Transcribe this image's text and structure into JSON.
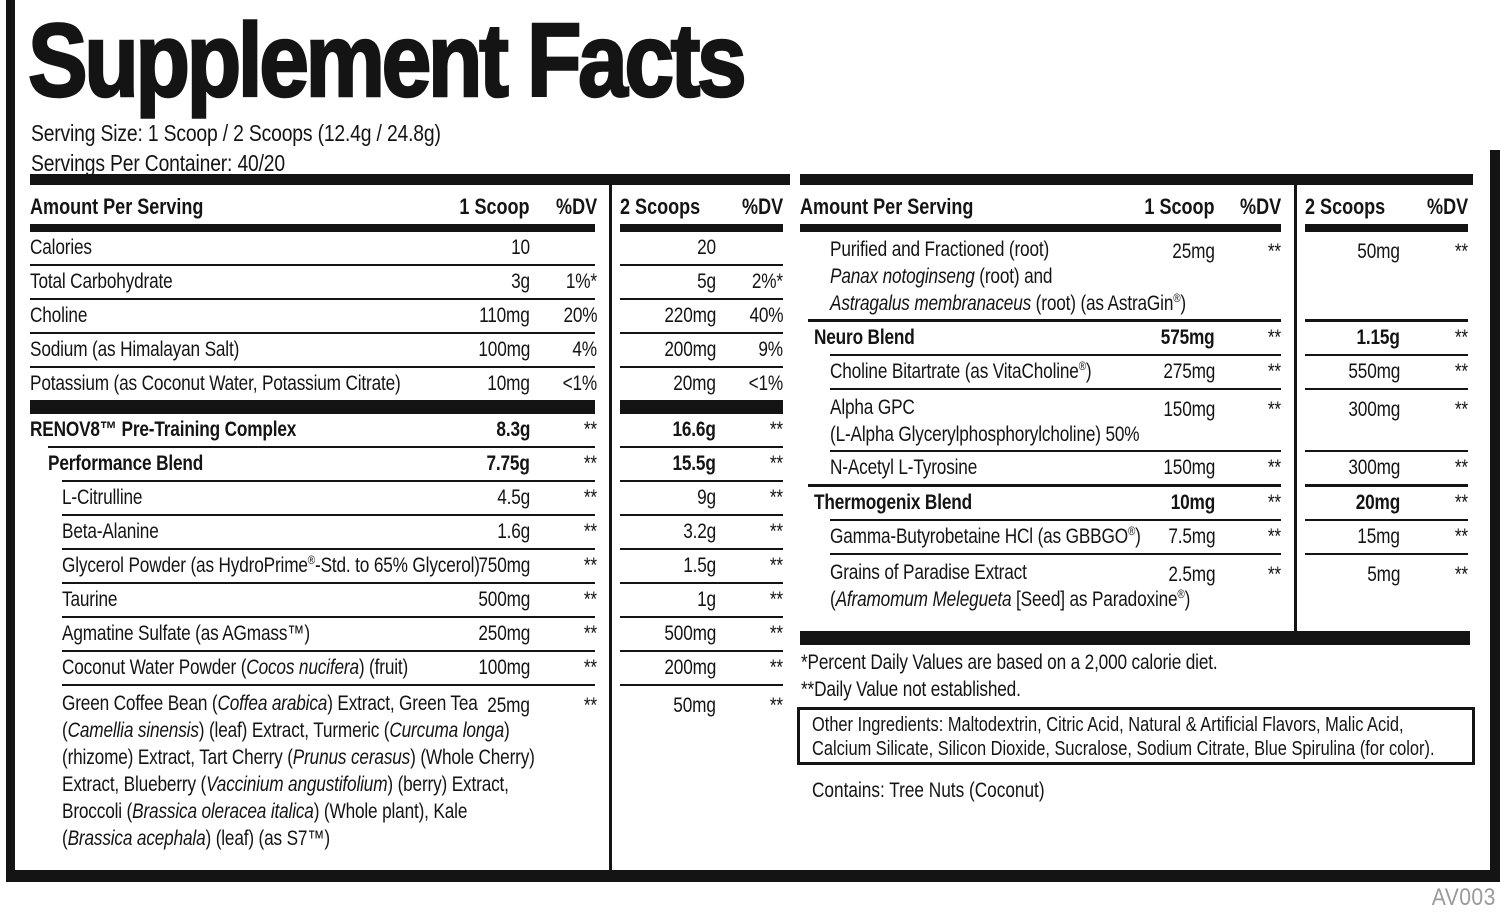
{
  "title": "Supplement Facts",
  "serving_size_line": "Serving Size: 1 Scoop / 2 Scoops (12.4g / 24.8g)",
  "servings_per_container_line": "Servings Per Container: 40/20",
  "colors": {
    "ink": "#141414",
    "muted": "#9a9a9a",
    "background": "#ffffff"
  },
  "header": {
    "amount": "Amount Per Serving",
    "scoop1": "1 Scoop",
    "dv": "%DV",
    "scoop2": "2 Scoops"
  },
  "left_table": {
    "items": [
      {
        "type": "row",
        "indent": 0,
        "bold": false,
        "lines": [
          [
            [
              "t",
              "Calories"
            ]
          ]
        ],
        "v1": "10",
        "d1": "",
        "v2": "20",
        "d2": "",
        "sep": "thin",
        "sep_indent": 0
      },
      {
        "type": "row",
        "indent": 0,
        "bold": false,
        "lines": [
          [
            [
              "t",
              "Total Carbohydrate"
            ]
          ]
        ],
        "v1": "3g",
        "d1": "1%*",
        "v2": "5g",
        "d2": "2%*",
        "sep": "thin",
        "sep_indent": 0
      },
      {
        "type": "row",
        "indent": 0,
        "bold": false,
        "lines": [
          [
            [
              "t",
              "Choline"
            ]
          ]
        ],
        "v1": "110mg",
        "d1": "20%",
        "v2": "220mg",
        "d2": "40%",
        "sep": "thin",
        "sep_indent": 0
      },
      {
        "type": "row",
        "indent": 0,
        "bold": false,
        "lines": [
          [
            [
              "t",
              "Sodium (as Himalayan Salt)"
            ]
          ]
        ],
        "v1": "100mg",
        "d1": "4%",
        "v2": "200mg",
        "d2": "9%",
        "sep": "thin",
        "sep_indent": 0
      },
      {
        "type": "row",
        "indent": 0,
        "bold": false,
        "lines": [
          [
            [
              "t",
              "Potassium (as Coconut Water, Potassium Citrate)"
            ]
          ]
        ],
        "v1": "10mg",
        "d1": "<1%",
        "v2": "20mg",
        "d2": "<1%",
        "sep": "none"
      },
      {
        "type": "bar"
      },
      {
        "type": "row",
        "indent": 0,
        "bold": true,
        "lines": [
          [
            [
              "t",
              "RENOV8™ Pre-Training Complex"
            ]
          ]
        ],
        "v1": "8.3g",
        "d1": "**",
        "v2": "16.6g",
        "d2": "**",
        "sep": "thin",
        "sep_indent": 1
      },
      {
        "type": "row",
        "indent": 1,
        "bold": true,
        "lines": [
          [
            [
              "t",
              "Performance Blend"
            ]
          ]
        ],
        "v1": "7.75g",
        "d1": "**",
        "v2": "15.5g",
        "d2": "**",
        "sep": "thin",
        "sep_indent": 2
      },
      {
        "type": "row",
        "indent": 2,
        "bold": false,
        "lines": [
          [
            [
              "t",
              "L-Citrulline"
            ]
          ]
        ],
        "v1": "4.5g",
        "d1": "**",
        "v2": "9g",
        "d2": "**",
        "sep": "thin",
        "sep_indent": 2
      },
      {
        "type": "row",
        "indent": 2,
        "bold": false,
        "lines": [
          [
            [
              "t",
              "Beta-Alanine"
            ]
          ]
        ],
        "v1": "1.6g",
        "d1": "**",
        "v2": "3.2g",
        "d2": "**",
        "sep": "thin",
        "sep_indent": 2
      },
      {
        "type": "row",
        "indent": 2,
        "bold": false,
        "lines": [
          [
            [
              "t",
              "Glycerol Powder (as HydroPrime"
            ],
            [
              "s",
              "®"
            ],
            [
              "t",
              "-Std. to 65% Glycerol)"
            ]
          ]
        ],
        "v1": "750mg",
        "d1": "**",
        "v2": "1.5g",
        "d2": "**",
        "sep": "thin",
        "sep_indent": 2
      },
      {
        "type": "row",
        "indent": 2,
        "bold": false,
        "lines": [
          [
            [
              "t",
              "Taurine"
            ]
          ]
        ],
        "v1": "500mg",
        "d1": "**",
        "v2": "1g",
        "d2": "**",
        "sep": "thin",
        "sep_indent": 2
      },
      {
        "type": "row",
        "indent": 2,
        "bold": false,
        "lines": [
          [
            [
              "t",
              "Agmatine Sulfate (as AGmass™)"
            ]
          ]
        ],
        "v1": "250mg",
        "d1": "**",
        "v2": "500mg",
        "d2": "**",
        "sep": "thin",
        "sep_indent": 2
      },
      {
        "type": "row",
        "indent": 2,
        "bold": false,
        "lines": [
          [
            [
              "t",
              "Coconut Water Powder ("
            ],
            [
              "i",
              "Cocos nucifera"
            ],
            [
              "t",
              ") (fruit)"
            ]
          ]
        ],
        "v1": "100mg",
        "d1": "**",
        "v2": "200mg",
        "d2": "**",
        "sep": "thin",
        "sep_indent": 2
      },
      {
        "type": "row",
        "indent": 2,
        "bold": false,
        "lines": [
          [
            [
              "t",
              "Green Coffee Bean ("
            ],
            [
              "i",
              "Coffea arabica"
            ],
            [
              "t",
              ") Extract, Green Tea"
            ]
          ],
          [
            [
              "t",
              "("
            ],
            [
              "i",
              "Camellia sinensis"
            ],
            [
              "t",
              ") (leaf) Extract, Turmeric ("
            ],
            [
              "i",
              "Curcuma longa"
            ],
            [
              "t",
              ")"
            ]
          ],
          [
            [
              "t",
              "(rhizome) Extract, Tart Cherry ("
            ],
            [
              "i",
              "Prunus cerasus"
            ],
            [
              "t",
              ") (Whole Cherry)"
            ]
          ],
          [
            [
              "t",
              "Extract, Blueberry ("
            ],
            [
              "i",
              "Vaccinium angustifolium"
            ],
            [
              "t",
              ") (berry) Extract,"
            ]
          ],
          [
            [
              "t",
              "Broccoli ("
            ],
            [
              "i",
              "Brassica oleracea italica"
            ],
            [
              "t",
              ") (Whole plant), Kale"
            ]
          ],
          [
            [
              "t",
              "("
            ],
            [
              "i",
              "Brassica acephala"
            ],
            [
              "t",
              ") (leaf) (as S7™)"
            ]
          ]
        ],
        "v1": "25mg",
        "d1": "**",
        "v2": "50mg",
        "d2": "**",
        "sep": "none"
      }
    ]
  },
  "right_table": {
    "items": [
      {
        "type": "row",
        "indent": 2,
        "bold": false,
        "lines": [
          [
            [
              "t",
              "Purified and Fractioned (root)"
            ]
          ],
          [
            [
              "i",
              "Panax notoginseng"
            ],
            [
              "t",
              " (root) and"
            ]
          ],
          [
            [
              "i",
              "Astragalus membranaceus"
            ],
            [
              "t",
              " (root) (as AstraGin"
            ],
            [
              "s",
              "®"
            ],
            [
              "t",
              ")"
            ]
          ]
        ],
        "v1": "25mg",
        "d1": "**",
        "v2": "50mg",
        "d2": "**",
        "sep": "blend"
      },
      {
        "type": "row",
        "indent": 1,
        "bold": true,
        "lines": [
          [
            [
              "t",
              "Neuro Blend"
            ]
          ]
        ],
        "v1": "575mg",
        "d1": "**",
        "v2": "1.15g",
        "d2": "**",
        "sep": "thin",
        "sep_indent": 2
      },
      {
        "type": "row",
        "indent": 2,
        "bold": false,
        "lines": [
          [
            [
              "t",
              "Choline Bitartrate (as VitaCholine"
            ],
            [
              "s",
              "®"
            ],
            [
              "t",
              ")"
            ]
          ]
        ],
        "v1": "275mg",
        "d1": "**",
        "v2": "550mg",
        "d2": "**",
        "sep": "thin",
        "sep_indent": 2
      },
      {
        "type": "row",
        "indent": 2,
        "bold": false,
        "lines": [
          [
            [
              "t",
              "Alpha GPC"
            ]
          ],
          [
            [
              "t",
              "(L-Alpha Glycerylphosphorylcholine) 50%"
            ]
          ]
        ],
        "v1": "150mg",
        "d1": "**",
        "v2": "300mg",
        "d2": "**",
        "sep": "thin",
        "sep_indent": 2
      },
      {
        "type": "row",
        "indent": 2,
        "bold": false,
        "lines": [
          [
            [
              "t",
              "N-Acetyl L-Tyrosine"
            ]
          ]
        ],
        "v1": "150mg",
        "d1": "**",
        "v2": "300mg",
        "d2": "**",
        "sep": "blend"
      },
      {
        "type": "row",
        "indent": 1,
        "bold": true,
        "lines": [
          [
            [
              "t",
              "Thermogenix Blend"
            ]
          ]
        ],
        "v1": "10mg",
        "d1": "**",
        "v2": "20mg",
        "d2": "**",
        "sep": "thin",
        "sep_indent": 2
      },
      {
        "type": "row",
        "indent": 2,
        "bold": false,
        "lines": [
          [
            [
              "t",
              "Gamma-Butyrobetaine HCl (as GBBGO"
            ],
            [
              "s",
              "®"
            ],
            [
              "t",
              ")"
            ]
          ]
        ],
        "v1": "7.5mg",
        "d1": "**",
        "v2": "15mg",
        "d2": "**",
        "sep": "thin",
        "sep_indent": 2
      },
      {
        "type": "row",
        "indent": 2,
        "bold": false,
        "lines": [
          [
            [
              "t",
              "Grains of Paradise Extract"
            ]
          ],
          [
            [
              "t",
              "("
            ],
            [
              "i",
              "Aframomum Melegueta"
            ],
            [
              "t",
              " [Seed] as Paradoxine"
            ],
            [
              "s",
              "®"
            ],
            [
              "t",
              ")"
            ]
          ]
        ],
        "v1": "2.5mg",
        "d1": "**",
        "v2": "5mg",
        "d2": "**",
        "sep": "none"
      },
      {
        "type": "fullbar"
      }
    ]
  },
  "footnotes": [
    "*Percent Daily Values are based on a 2,000 calorie diet.",
    "**Daily Value not established."
  ],
  "other_ingredients_lines": [
    "Other Ingredients: Maltodextrin, Citric Acid, Natural & Artificial Flavors, Malic Acid,",
    "Calcium Silicate, Silicon Dioxide, Sucralose, Sodium Citrate, Blue Spirulina (for color)."
  ],
  "contains_line": "Contains: Tree Nuts (Coconut)",
  "code": "AV003"
}
